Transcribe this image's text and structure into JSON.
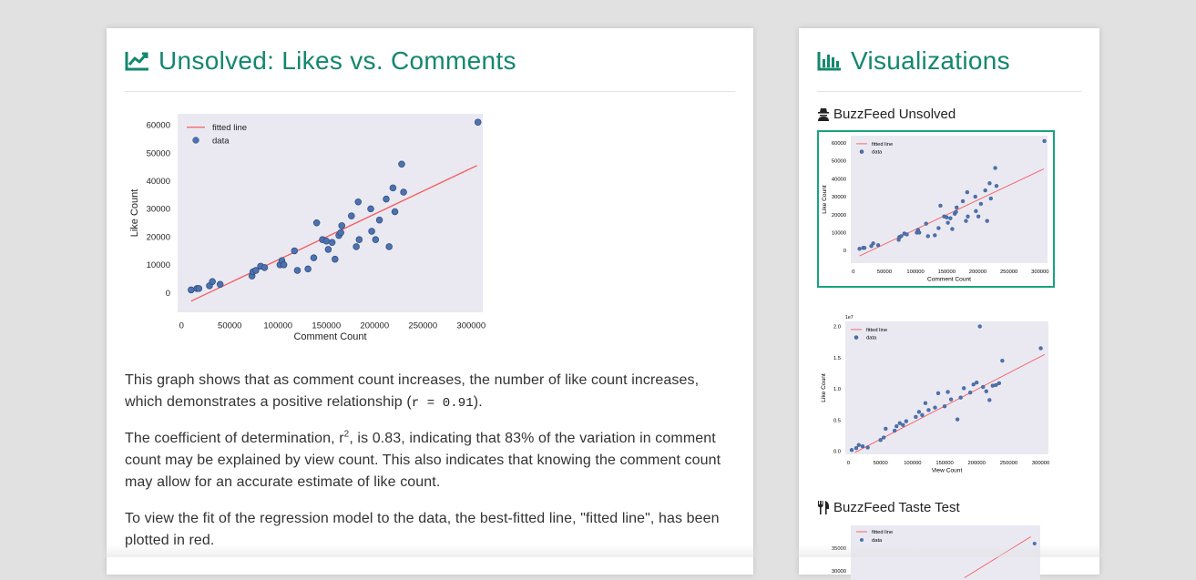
{
  "main": {
    "title": "Unsolved: Likes vs. Comments",
    "title_icon": "line-chart-icon",
    "paragraphs": {
      "p1_text": "This graph shows that as comment count increases, the number of like count increases, which demonstrates a positive relationship (",
      "p1_code": "r = 0.91",
      "p1_end": ").",
      "p2_a": "The coefficient of determination, r",
      "p2_sup": "2",
      "p2_b": ", is 0.83, indicating that 83% of the variation in comment count may be explained by view count. This also indicates that knowing the comment count may allow for an accurate estimate of like count.",
      "p3": "To view the fit of the regression model to the data, the best-fitted line, \"fitted line\", has been plotted in red."
    }
  },
  "sidebar": {
    "title": "Visualizations",
    "title_icon": "bar-chart-icon",
    "sections": [
      {
        "label": "BuzzFeed Unsolved",
        "icon": "detective-icon"
      },
      {
        "label": "BuzzFeed Taste Test",
        "icon": "utensils-icon"
      }
    ]
  },
  "colors": {
    "accent": "#12876e",
    "selected_border": "#19a37f",
    "plot_bg": "#eae9f2",
    "point": "#4c72b0",
    "line": "#f55c5c"
  },
  "chart_data": [
    {
      "id": "likes-vs-comments",
      "type": "scatter",
      "title": "",
      "xlabel": "Comment Count",
      "ylabel": "Like Count",
      "xlim": [
        -4000,
        312000
      ],
      "ylim": [
        -7000,
        64000
      ],
      "xticks": [
        0,
        50000,
        100000,
        150000,
        200000,
        250000,
        300000
      ],
      "yticks": [
        0,
        10000,
        20000,
        30000,
        40000,
        50000,
        60000
      ],
      "legend": {
        "position": "top-left",
        "entries": [
          "fitted line",
          "data"
        ]
      },
      "grid": false,
      "fitted_line": {
        "x": [
          10000,
          306000
        ],
        "y": [
          -3000,
          45500
        ]
      },
      "series": [
        {
          "name": "data",
          "x": [
            10000,
            16000,
            18000,
            29000,
            32000,
            40000,
            73000,
            74000,
            77000,
            82000,
            86000,
            102000,
            104000,
            106000,
            117000,
            120000,
            131000,
            137000,
            140000,
            146000,
            150000,
            152000,
            156000,
            159000,
            163000,
            165000,
            166000,
            176000,
            181000,
            183000,
            184000,
            196000,
            197000,
            201000,
            205000,
            212000,
            215000,
            219000,
            221000,
            228000,
            230000,
            307000
          ],
          "y": [
            1000,
            1500,
            1500,
            2500,
            4000,
            3000,
            6000,
            7500,
            8000,
            9500,
            9000,
            10000,
            11500,
            10000,
            15000,
            8000,
            8500,
            12500,
            25000,
            19000,
            18500,
            15500,
            18000,
            12000,
            20500,
            21500,
            24000,
            27500,
            16500,
            32500,
            19000,
            30000,
            22000,
            19000,
            26000,
            33500,
            16500,
            37500,
            29000,
            46000,
            36000,
            61000
          ]
        }
      ]
    },
    {
      "id": "likes-vs-views",
      "type": "scatter",
      "title": "",
      "xlabel": "View Count",
      "ylabel": "Like Count",
      "scale_note": "1e7",
      "xlim": [
        -5000,
        312000
      ],
      "ylim": [
        -0.05,
        2.08
      ],
      "xticks": [
        0,
        50000,
        100000,
        150000,
        200000,
        250000,
        300000
      ],
      "ytick_labels": [
        "0.0",
        "0.5",
        "1.0",
        "1.5",
        "2.0"
      ],
      "yticks": [
        0,
        0.5,
        1.0,
        1.5,
        2.0
      ],
      "legend": {
        "position": "top-left",
        "entries": [
          "fitted line",
          "data"
        ]
      },
      "grid": false,
      "fitted_line": {
        "x": [
          10000,
          306000
        ],
        "y": [
          -0.02,
          1.55
        ]
      },
      "series": [
        {
          "name": "data",
          "x": [
            5000,
            12000,
            16000,
            22000,
            30000,
            50000,
            55000,
            58000,
            72000,
            75000,
            80000,
            85000,
            90000,
            105000,
            110000,
            115000,
            120000,
            125000,
            135000,
            140000,
            150000,
            155000,
            160000,
            170000,
            175000,
            180000,
            190000,
            195000,
            200000,
            205000,
            210000,
            215000,
            220000,
            225000,
            230000,
            235000,
            240000,
            300000
          ],
          "y": [
            0.02,
            0.05,
            0.1,
            0.08,
            0.06,
            0.18,
            0.22,
            0.36,
            0.33,
            0.4,
            0.45,
            0.42,
            0.48,
            0.55,
            0.63,
            0.58,
            0.77,
            0.66,
            0.7,
            0.93,
            0.72,
            0.95,
            0.83,
            0.51,
            0.86,
            1.01,
            0.94,
            1.07,
            1.1,
            2.0,
            1.03,
            0.96,
            0.82,
            1.05,
            1.06,
            1.09,
            1.45,
            1.65
          ]
        }
      ]
    },
    {
      "id": "taste-test-partial",
      "type": "scatter",
      "title": "",
      "xlabel": "",
      "ylabel": "",
      "ylim": [
        24000,
        40000
      ],
      "yticks": [
        30000,
        35000
      ],
      "legend": {
        "position": "top-left",
        "entries": [
          "fitted line",
          "data"
        ]
      },
      "grid": false,
      "series": [
        {
          "name": "data",
          "x": [
            0.97
          ],
          "y": [
            36000
          ]
        }
      ],
      "fitted_line": {
        "x": [
          0.6,
          0.95
        ],
        "y": [
          28500,
          37500
        ]
      }
    }
  ]
}
